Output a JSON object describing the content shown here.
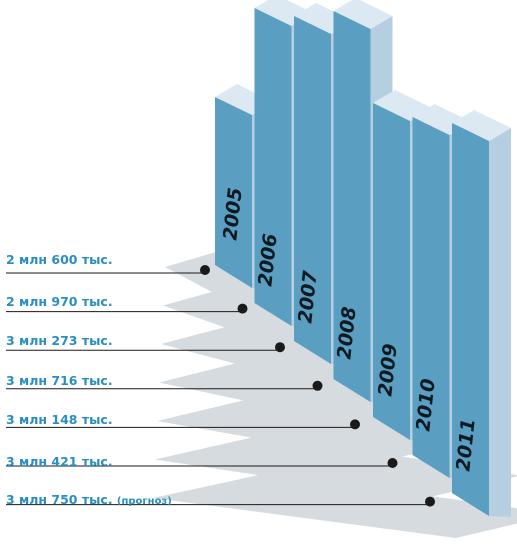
{
  "chart_data": {
    "type": "bar",
    "style": "3d-stacked-columns",
    "categories": [
      "2005",
      "2006",
      "2007",
      "2008",
      "2009",
      "2010",
      "2011"
    ],
    "values": [
      2600000,
      2970000,
      3273000,
      3716000,
      3148000,
      3421000,
      3750000
    ],
    "value_labels": [
      "2 млн 600 тыс.",
      "2 млн 970 тыс.",
      "3 млн 273 тыс.",
      "3 млн 716 тыс.",
      "3 млн 148 тыс.",
      "3 млн 421 тыс.",
      "3 млн 750 тыс."
    ],
    "forecast_note": "(прогноз)",
    "grid": false,
    "colors": {
      "bar_front": "#5a9fc2",
      "bar_side": "#b5cfe0",
      "bar_top": "#dce9f2",
      "floor": "#d6dbe0",
      "label": "#2a8fc0",
      "leader": "#1a1a1a"
    }
  }
}
